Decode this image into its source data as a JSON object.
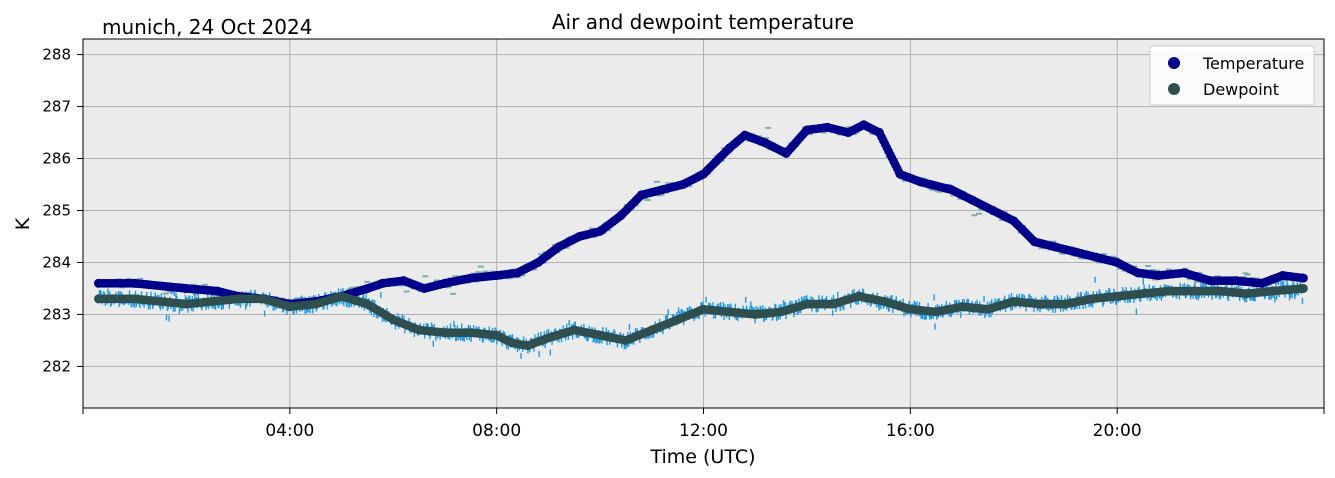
{
  "figure": {
    "location_date": "munich, 24 Oct 2024"
  },
  "chart_data": {
    "type": "line",
    "title": "Air and dewpoint temperature",
    "xlabel": "Time (UTC)",
    "ylabel": "K",
    "x_unit": "hours since 00:00 UTC",
    "xlim": [
      0,
      24
    ],
    "ylim": [
      281.2,
      288.3
    ],
    "x_ticks": [
      {
        "value": 4,
        "label": "04:00"
      },
      {
        "value": 8,
        "label": "08:00"
      },
      {
        "value": 12,
        "label": "12:00"
      },
      {
        "value": 16,
        "label": "16:00"
      },
      {
        "value": 20,
        "label": "20:00"
      }
    ],
    "y_ticks": [
      282,
      283,
      284,
      285,
      286,
      287,
      288
    ],
    "grid": true,
    "background": "#ebebeb",
    "legend": {
      "placement": "top-right",
      "entries": [
        "Temperature",
        "Dewpoint"
      ]
    },
    "series": [
      {
        "name": "Temperature",
        "color": "#00008b",
        "raw_color": "#7ab0b0",
        "x": [
          0.3,
          1,
          2,
          2.6,
          3,
          3.5,
          4,
          4.5,
          5,
          5.5,
          5.8,
          6.2,
          6.6,
          7,
          7.5,
          8,
          8.4,
          8.8,
          9.2,
          9.6,
          10,
          10.4,
          10.8,
          11.2,
          11.6,
          12,
          12.5,
          12.8,
          13.2,
          13.6,
          14,
          14.4,
          14.8,
          15.1,
          15.4,
          15.8,
          16.2,
          16.8,
          17.2,
          17.6,
          18,
          18.4,
          18.8,
          19.2,
          19.6,
          20,
          20.4,
          20.8,
          21.3,
          21.8,
          22.3,
          22.8,
          23.2,
          23.6
        ],
        "values": [
          283.6,
          283.6,
          283.5,
          283.45,
          283.35,
          283.3,
          283.2,
          283.25,
          283.35,
          283.5,
          283.6,
          283.65,
          283.5,
          283.6,
          283.7,
          283.75,
          283.8,
          284.0,
          284.3,
          284.5,
          284.6,
          284.9,
          285.3,
          285.4,
          285.5,
          285.7,
          286.2,
          286.45,
          286.3,
          286.1,
          286.55,
          286.6,
          286.5,
          286.65,
          286.5,
          285.7,
          285.55,
          285.4,
          285.2,
          285.0,
          284.8,
          284.4,
          284.3,
          284.2,
          284.1,
          284.0,
          283.8,
          283.75,
          283.8,
          283.65,
          283.65,
          283.6,
          283.75,
          283.7
        ]
      },
      {
        "name": "Dewpoint",
        "color": "#2f4f4f",
        "raw_color": "#1e9be8",
        "x": [
          0.3,
          1,
          2,
          2.5,
          3,
          3.5,
          4,
          4.5,
          5,
          5.5,
          6,
          6.5,
          7,
          7.5,
          8,
          8.3,
          8.6,
          9,
          9.5,
          10,
          10.5,
          11,
          11.5,
          12,
          12.5,
          13,
          13.5,
          14,
          14.5,
          15,
          15.5,
          16,
          16.5,
          17,
          17.5,
          18,
          18.5,
          19,
          19.5,
          20,
          20.5,
          21,
          21.5,
          22,
          22.5,
          23,
          23.6
        ],
        "values": [
          283.3,
          283.3,
          283.2,
          283.25,
          283.3,
          283.3,
          283.15,
          283.2,
          283.35,
          283.2,
          282.9,
          282.7,
          282.65,
          282.65,
          282.6,
          282.45,
          282.4,
          282.55,
          282.7,
          282.6,
          282.5,
          282.7,
          282.9,
          283.1,
          283.05,
          283.0,
          283.05,
          283.2,
          283.2,
          283.35,
          283.25,
          283.1,
          283.05,
          283.15,
          283.1,
          283.25,
          283.2,
          283.2,
          283.3,
          283.35,
          283.4,
          283.45,
          283.45,
          283.45,
          283.4,
          283.45,
          283.5
        ]
      }
    ]
  }
}
